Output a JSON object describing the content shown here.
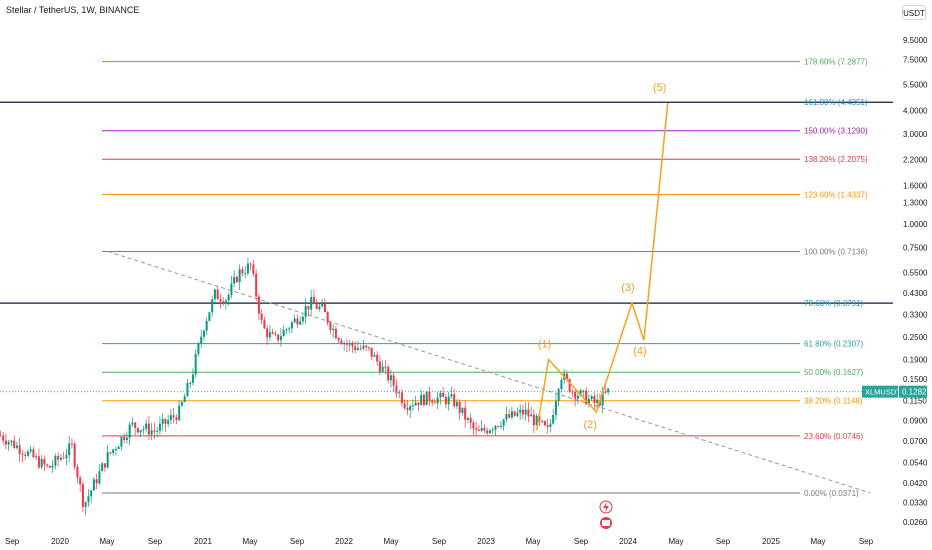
{
  "header": {
    "title": "Stellar / TetherUS, 1W, BINANCE",
    "unit_badge": "USDT"
  },
  "price_tag": {
    "symbol": "XLMUSDT",
    "value": "0.1282",
    "symbol_color": "#26a69a",
    "value_color": "#26a69a"
  },
  "chart_data": {
    "type": "candlestick",
    "scale": "log",
    "x_labels": [
      "Sep",
      "2020",
      "May",
      "Sep",
      "2021",
      "May",
      "Sep",
      "2022",
      "May",
      "Sep",
      "2023",
      "May",
      "Sep",
      "2024",
      "May",
      "Sep",
      "2025",
      "May",
      "Sep"
    ],
    "y_ticks": [
      "9.5000",
      "7.5000",
      "5.5000",
      "4.0000",
      "3.0000",
      "2.2000",
      "1.6000",
      "1.3000",
      "1.0000",
      "0.7500",
      "0.5500",
      "0.4300",
      "0.3300",
      "0.2500",
      "0.1900",
      "0.1500",
      "0.1150",
      "0.0900",
      "0.0700",
      "0.0540",
      "0.0420",
      "0.0330",
      "0.0260"
    ],
    "fib_levels": [
      {
        "label": "178.60% (7.2877)",
        "price": 7.2877,
        "color": "#4caf50"
      },
      {
        "label": "161.80% (4.4351)",
        "price": 4.4351,
        "color": "#2196c4"
      },
      {
        "label": "150.00% (3.1290)",
        "price": 3.129,
        "color": "#9c27b0"
      },
      {
        "label": "138.20% (2.2075)",
        "price": 2.2075,
        "color": "#f23645"
      },
      {
        "label": "123.60% (1.4337)",
        "price": 1.4337,
        "color": "#ff9800"
      },
      {
        "label": "100.00% (0.7136)",
        "price": 0.7136,
        "color": "#787b86"
      },
      {
        "label": "78.60% (0.3791)",
        "price": 0.3791,
        "color": "#2196c4"
      },
      {
        "label": "61.80% (0.2307)",
        "price": 0.2307,
        "color": "#26a69a"
      },
      {
        "label": "50.00% (0.1627)",
        "price": 0.1627,
        "color": "#4caf50"
      },
      {
        "label": "38.20% (0.1148)",
        "price": 0.1148,
        "color": "#ff9800"
      },
      {
        "label": "23.60% (0.0746)",
        "price": 0.0746,
        "color": "#f23645"
      },
      {
        "label": "0.00% (0.0371)",
        "price": 0.0371,
        "color": "#787b86"
      }
    ],
    "wave_labels": [
      "(1)",
      "(2)",
      "(3)",
      "(4)",
      "(5)"
    ],
    "wave_path": [
      {
        "date": "2023-06",
        "price": 0.19
      },
      {
        "date": "2023-10",
        "price": 0.1
      },
      {
        "date": "2024-01",
        "price": 0.38
      },
      {
        "date": "2024-02",
        "price": 0.24
      },
      {
        "date": "2024-04",
        "price": 4.4
      }
    ],
    "trendline": [
      {
        "date": "2020-05",
        "price": 0.7136
      },
      {
        "date": "2025-09",
        "price": 0.0371
      }
    ],
    "current_price": 0.1282,
    "price_history": [
      {
        "date": "2019-08",
        "price": 0.075
      },
      {
        "date": "2019-10",
        "price": 0.062
      },
      {
        "date": "2019-12",
        "price": 0.05
      },
      {
        "date": "2020-02",
        "price": 0.065
      },
      {
        "date": "2020-03",
        "price": 0.032
      },
      {
        "date": "2020-05",
        "price": 0.058
      },
      {
        "date": "2020-07",
        "price": 0.085
      },
      {
        "date": "2020-09",
        "price": 0.079
      },
      {
        "date": "2020-11",
        "price": 0.1
      },
      {
        "date": "2020-12",
        "price": 0.15
      },
      {
        "date": "2021-01",
        "price": 0.28
      },
      {
        "date": "2021-02",
        "price": 0.42
      },
      {
        "date": "2021-03",
        "price": 0.4
      },
      {
        "date": "2021-04",
        "price": 0.55
      },
      {
        "date": "2021-05",
        "price": 0.6
      },
      {
        "date": "2021-06",
        "price": 0.28
      },
      {
        "date": "2021-07",
        "price": 0.24
      },
      {
        "date": "2021-09",
        "price": 0.32
      },
      {
        "date": "2021-10",
        "price": 0.38
      },
      {
        "date": "2021-11",
        "price": 0.35
      },
      {
        "date": "2021-12",
        "price": 0.27
      },
      {
        "date": "2022-01",
        "price": 0.23
      },
      {
        "date": "2022-03",
        "price": 0.21
      },
      {
        "date": "2022-05",
        "price": 0.14
      },
      {
        "date": "2022-06",
        "price": 0.11
      },
      {
        "date": "2022-08",
        "price": 0.12
      },
      {
        "date": "2022-10",
        "price": 0.115
      },
      {
        "date": "2022-12",
        "price": 0.076
      },
      {
        "date": "2023-02",
        "price": 0.09
      },
      {
        "date": "2023-04",
        "price": 0.1
      },
      {
        "date": "2023-06",
        "price": 0.078
      },
      {
        "date": "2023-07",
        "price": 0.16
      },
      {
        "date": "2023-08",
        "price": 0.13
      },
      {
        "date": "2023-10",
        "price": 0.11
      },
      {
        "date": "2023-11",
        "price": 0.1282
      }
    ]
  }
}
